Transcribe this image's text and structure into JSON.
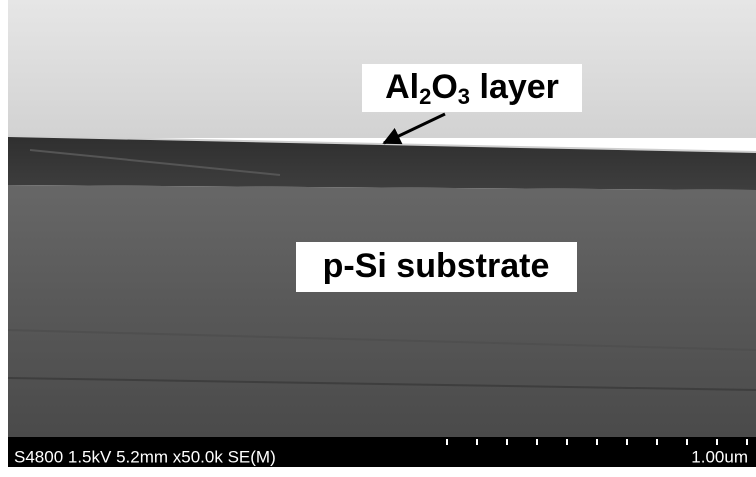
{
  "image": {
    "labels": [
      {
        "parts": [
          "Al",
          "2",
          "O",
          "3",
          " layer"
        ]
      },
      {
        "parts": [
          "p-Si substrate"
        ]
      }
    ],
    "info_bar": {
      "settings": "S4800 1.5kV 5.2mm x50.0k SE(M)",
      "scale": "1.00um"
    }
  }
}
